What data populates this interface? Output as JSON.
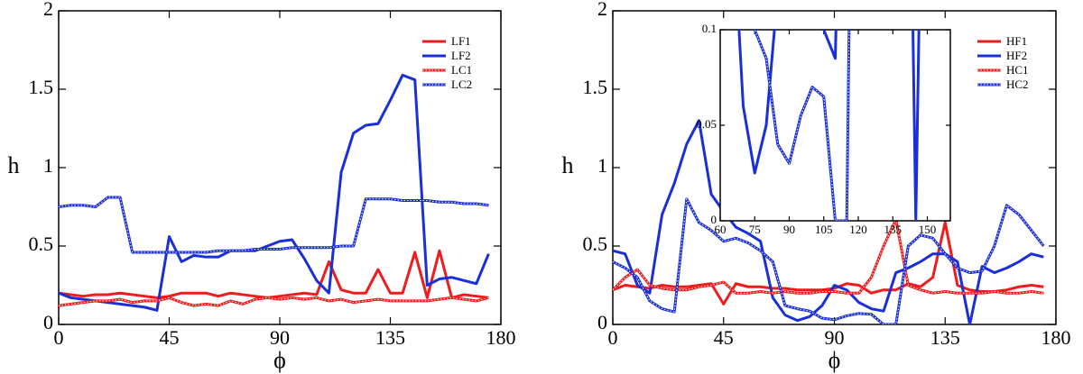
{
  "chart_data": [
    {
      "type": "line",
      "xlabel": "ϕ",
      "ylabel": "h",
      "xlim": [
        0,
        180
      ],
      "ylim": [
        0,
        2
      ],
      "xticks": [
        0,
        45,
        90,
        135,
        180
      ],
      "yticks": [
        0,
        0.5,
        1,
        1.5,
        2
      ],
      "legend": "upper right",
      "x": [
        0,
        5,
        10,
        15,
        20,
        25,
        30,
        35,
        40,
        45,
        50,
        55,
        60,
        65,
        70,
        75,
        80,
        85,
        90,
        95,
        100,
        105,
        110,
        115,
        120,
        125,
        130,
        135,
        140,
        145,
        150,
        155,
        160,
        165,
        170,
        175
      ],
      "series": [
        {
          "name": "LF1",
          "color": "#ee1c1c",
          "style": "solid",
          "values": [
            0.2,
            0.19,
            0.18,
            0.19,
            0.19,
            0.2,
            0.19,
            0.18,
            0.17,
            0.18,
            0.2,
            0.2,
            0.2,
            0.18,
            0.2,
            0.19,
            0.18,
            0.17,
            0.18,
            0.19,
            0.2,
            0.19,
            0.4,
            0.22,
            0.2,
            0.2,
            0.35,
            0.2,
            0.2,
            0.46,
            0.17,
            0.47,
            0.17,
            0.19,
            0.18,
            0.17
          ]
        },
        {
          "name": "LF2",
          "color": "#1a2fd8",
          "style": "solid",
          "values": [
            0.2,
            0.17,
            0.16,
            0.15,
            0.14,
            0.13,
            0.12,
            0.11,
            0.09,
            0.56,
            0.4,
            0.44,
            0.43,
            0.43,
            0.47,
            0.47,
            0.47,
            0.5,
            0.53,
            0.54,
            0.42,
            0.28,
            0.2,
            0.97,
            1.22,
            1.27,
            1.28,
            1.43,
            1.59,
            1.56,
            0.25,
            0.29,
            0.3,
            0.28,
            0.26,
            0.45
          ]
        },
        {
          "name": "LC1",
          "color": "#ee1c1c",
          "style": "dotted",
          "values": [
            0.12,
            0.13,
            0.14,
            0.15,
            0.15,
            0.16,
            0.14,
            0.15,
            0.15,
            0.17,
            0.14,
            0.12,
            0.13,
            0.12,
            0.15,
            0.13,
            0.16,
            0.17,
            0.16,
            0.17,
            0.16,
            0.17,
            0.15,
            0.16,
            0.14,
            0.15,
            0.16,
            0.15,
            0.15,
            0.15,
            0.15,
            0.16,
            0.17,
            0.16,
            0.15,
            0.17
          ]
        },
        {
          "name": "LC2",
          "color": "#1a2fd8",
          "style": "dotted",
          "values": [
            0.75,
            0.76,
            0.76,
            0.75,
            0.81,
            0.81,
            0.46,
            0.46,
            0.46,
            0.46,
            0.46,
            0.46,
            0.46,
            0.47,
            0.47,
            0.47,
            0.48,
            0.48,
            0.48,
            0.49,
            0.49,
            0.49,
            0.49,
            0.5,
            0.5,
            0.8,
            0.8,
            0.8,
            0.79,
            0.79,
            0.79,
            0.78,
            0.78,
            0.77,
            0.77,
            0.76
          ]
        }
      ]
    },
    {
      "type": "line",
      "xlabel": "ϕ",
      "ylabel": "h",
      "xlim": [
        0,
        180
      ],
      "ylim": [
        0,
        2
      ],
      "xticks": [
        0,
        45,
        90,
        135,
        180
      ],
      "yticks": [
        0,
        0.5,
        1,
        1.5,
        2
      ],
      "legend": "upper right",
      "x": [
        0,
        5,
        10,
        15,
        20,
        25,
        30,
        35,
        40,
        45,
        50,
        55,
        60,
        65,
        70,
        75,
        80,
        85,
        90,
        95,
        100,
        105,
        110,
        115,
        120,
        125,
        130,
        135,
        140,
        145,
        150,
        155,
        160,
        165,
        170,
        175
      ],
      "series": [
        {
          "name": "HF1",
          "color": "#ee1c1c",
          "style": "solid",
          "values": [
            0.22,
            0.25,
            0.24,
            0.23,
            0.25,
            0.24,
            0.24,
            0.25,
            0.26,
            0.13,
            0.26,
            0.24,
            0.24,
            0.23,
            0.23,
            0.22,
            0.22,
            0.22,
            0.23,
            0.26,
            0.25,
            0.2,
            0.22,
            0.22,
            0.26,
            0.24,
            0.3,
            0.65,
            0.25,
            0.22,
            0.21,
            0.21,
            0.22,
            0.24,
            0.25,
            0.24
          ]
        },
        {
          "name": "HF2",
          "color": "#1a2fd8",
          "style": "solid",
          "values": [
            0.47,
            0.45,
            0.25,
            0.2,
            0.7,
            0.9,
            1.15,
            1.3,
            0.83,
            0.72,
            0.62,
            0.58,
            0.53,
            0.17,
            0.06,
            0.025,
            0.05,
            0.12,
            0.25,
            0.22,
            0.14,
            0.1,
            0.085,
            0.33,
            0.36,
            0.4,
            0.45,
            0.45,
            0.4,
            0,
            0.37,
            0.33,
            0.36,
            0.4,
            0.45,
            0.43
          ]
        },
        {
          "name": "HC1",
          "color": "#ee1c1c",
          "style": "dotted",
          "values": [
            0.22,
            0.3,
            0.35,
            0.25,
            0.23,
            0.22,
            0.22,
            0.24,
            0.25,
            0.27,
            0.2,
            0.2,
            0.21,
            0.2,
            0.21,
            0.2,
            0.2,
            0.21,
            0.21,
            0.2,
            0.2,
            0.3,
            0.5,
            0.67,
            0.25,
            0.22,
            0.2,
            0.21,
            0.2,
            0.2,
            0.2,
            0.21,
            0.2,
            0.2,
            0.21,
            0.2
          ]
        },
        {
          "name": "HC2",
          "color": "#1a2fd8",
          "style": "dotted",
          "values": [
            0.4,
            0.36,
            0.3,
            0.15,
            0.1,
            0.08,
            0.8,
            0.65,
            0.6,
            0.53,
            0.55,
            0.52,
            0.47,
            0.4,
            0.12,
            0.1,
            0.085,
            0.04,
            0.03,
            0.055,
            0.07,
            0.065,
            0,
            0,
            0.5,
            0.57,
            0.55,
            0.45,
            0.36,
            0.33,
            0.34,
            0.5,
            0.76,
            0.7,
            0.6,
            0.5
          ]
        }
      ],
      "inset": {
        "xlim": [
          60,
          160
        ],
        "ylim": [
          0,
          0.1
        ],
        "xticks": [
          60,
          75,
          90,
          105,
          120,
          135,
          150
        ],
        "yticks": [
          0,
          0.05,
          0.1
        ]
      }
    }
  ]
}
